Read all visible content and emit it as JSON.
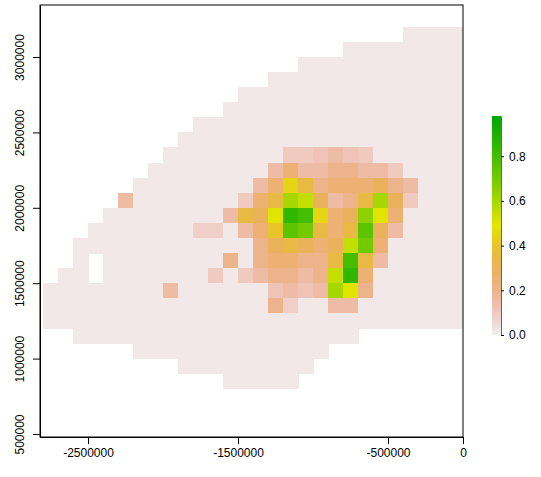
{
  "chart_data": {
    "type": "heatmap",
    "x": [
      -2750000,
      -2650000,
      -2550000,
      -2450000,
      -2350000,
      -2250000,
      -2150000,
      -2050000,
      -1950000,
      -1850000,
      -1750000,
      -1650000,
      -1550000,
      -1450000,
      -1350000,
      -1250000,
      -1150000,
      -1050000,
      -950000,
      -850000,
      -750000,
      -650000,
      -550000,
      -450000,
      -350000,
      -250000,
      -150000,
      -50000
    ],
    "y": [
      3150000,
      3050000,
      2950000,
      2850000,
      2750000,
      2650000,
      2550000,
      2450000,
      2350000,
      2250000,
      2150000,
      2050000,
      1950000,
      1850000,
      1750000,
      1650000,
      1550000,
      1450000,
      1350000,
      1250000,
      1150000,
      1050000,
      950000,
      850000
    ],
    "values": [
      [
        null,
        null,
        null,
        null,
        null,
        null,
        null,
        null,
        null,
        null,
        null,
        null,
        null,
        null,
        null,
        null,
        null,
        null,
        null,
        null,
        null,
        null,
        null,
        null,
        0.02,
        0.02,
        0.02,
        0.02
      ],
      [
        null,
        null,
        null,
        null,
        null,
        null,
        null,
        null,
        null,
        null,
        null,
        null,
        null,
        null,
        null,
        null,
        null,
        null,
        null,
        null,
        0.02,
        0.02,
        0.02,
        0.02,
        0.02,
        0.02,
        0.02,
        0.02
      ],
      [
        null,
        null,
        null,
        null,
        null,
        null,
        null,
        null,
        null,
        null,
        null,
        null,
        null,
        null,
        null,
        null,
        null,
        0.02,
        0.02,
        0.02,
        0.02,
        0.02,
        0.02,
        0.02,
        0.02,
        0.02,
        0.02,
        0.02
      ],
      [
        null,
        null,
        null,
        null,
        null,
        null,
        null,
        null,
        null,
        null,
        null,
        null,
        null,
        null,
        null,
        0.02,
        0.02,
        0.02,
        0.02,
        0.02,
        0.02,
        0.02,
        0.02,
        0.02,
        0.02,
        0.02,
        0.02,
        0.02
      ],
      [
        null,
        null,
        null,
        null,
        null,
        null,
        null,
        null,
        null,
        null,
        null,
        null,
        null,
        0.02,
        0.02,
        0.02,
        0.02,
        0.02,
        0.02,
        0.02,
        0.02,
        0.02,
        0.02,
        0.02,
        0.02,
        0.02,
        0.02,
        0.02
      ],
      [
        null,
        null,
        null,
        null,
        null,
        null,
        null,
        null,
        null,
        null,
        null,
        null,
        0.02,
        0.02,
        0.02,
        0.02,
        0.02,
        0.02,
        0.02,
        0.02,
        0.02,
        0.02,
        0.02,
        0.02,
        0.02,
        0.02,
        0.02,
        0.02
      ],
      [
        null,
        null,
        null,
        null,
        null,
        null,
        null,
        null,
        null,
        null,
        0.02,
        0.02,
        0.02,
        0.02,
        0.02,
        0.02,
        0.02,
        0.02,
        0.02,
        0.02,
        0.02,
        0.02,
        0.02,
        0.02,
        0.02,
        0.02,
        0.02,
        0.02
      ],
      [
        null,
        null,
        null,
        null,
        null,
        null,
        null,
        null,
        null,
        0.02,
        0.02,
        0.02,
        0.02,
        0.02,
        0.02,
        0.02,
        0.02,
        0.02,
        0.02,
        0.02,
        0.02,
        0.02,
        0.02,
        0.02,
        0.02,
        0.02,
        0.02,
        0.02
      ],
      [
        null,
        null,
        null,
        null,
        null,
        null,
        null,
        null,
        0.02,
        0.02,
        0.02,
        0.02,
        0.02,
        0.02,
        0.02,
        0.02,
        0.1,
        0.1,
        0.12,
        0.15,
        0.12,
        0.1,
        0.02,
        0.02,
        0.02,
        0.02,
        0.02,
        0.02
      ],
      [
        null,
        null,
        null,
        null,
        null,
        null,
        null,
        0.02,
        0.02,
        0.02,
        0.02,
        0.02,
        0.02,
        0.02,
        0.02,
        0.15,
        0.25,
        0.15,
        0.15,
        0.2,
        0.2,
        0.15,
        0.15,
        0.1,
        0.02,
        0.02,
        0.02,
        0.02
      ],
      [
        null,
        null,
        null,
        null,
        null,
        null,
        0.02,
        0.02,
        0.02,
        0.02,
        0.02,
        0.02,
        0.02,
        0.02,
        0.15,
        0.25,
        0.45,
        0.35,
        0.2,
        0.25,
        0.25,
        0.25,
        0.3,
        0.2,
        0.15,
        0.02,
        0.02,
        0.02
      ],
      [
        null,
        null,
        null,
        null,
        null,
        0.15,
        0.02,
        0.02,
        0.02,
        0.02,
        0.02,
        0.02,
        0.02,
        0.1,
        0.25,
        0.35,
        0.6,
        0.55,
        0.3,
        0.15,
        0.2,
        0.35,
        0.6,
        0.3,
        0.1,
        0.02,
        0.02,
        0.02
      ],
      [
        null,
        null,
        null,
        null,
        0.02,
        0.02,
        0.02,
        0.02,
        0.02,
        0.02,
        0.02,
        0.02,
        0.15,
        0.35,
        0.3,
        0.5,
        0.85,
        0.8,
        0.45,
        0.25,
        0.3,
        0.65,
        0.5,
        0.25,
        0.02,
        0.02,
        0.02,
        0.02
      ],
      [
        null,
        null,
        null,
        0.02,
        0.02,
        0.02,
        0.02,
        0.02,
        0.02,
        0.02,
        0.08,
        0.08,
        0.02,
        0.15,
        0.25,
        0.4,
        0.75,
        0.7,
        0.35,
        0.25,
        0.35,
        0.75,
        0.3,
        0.15,
        0.02,
        0.02,
        0.02,
        0.02
      ],
      [
        null,
        null,
        0.02,
        0.02,
        0.02,
        0.02,
        0.02,
        0.02,
        0.02,
        0.02,
        0.02,
        0.02,
        0.02,
        0.02,
        0.2,
        0.3,
        0.35,
        0.3,
        0.25,
        0.3,
        0.55,
        0.7,
        0.25,
        0.02,
        0.02,
        0.02,
        0.02,
        0.02
      ],
      [
        null,
        null,
        0.02,
        null,
        0.02,
        0.02,
        0.02,
        0.02,
        0.02,
        0.02,
        0.02,
        0.02,
        0.2,
        0.02,
        0.2,
        0.25,
        0.25,
        0.2,
        0.2,
        0.35,
        0.8,
        0.35,
        0.15,
        0.02,
        0.02,
        0.02,
        0.02,
        0.02
      ],
      [
        null,
        0.02,
        0.02,
        null,
        0.02,
        0.02,
        0.02,
        0.02,
        0.02,
        0.02,
        0.02,
        0.1,
        0.02,
        0.1,
        0.15,
        0.2,
        0.2,
        0.15,
        0.2,
        0.55,
        0.85,
        0.25,
        0.02,
        0.02,
        0.02,
        0.02,
        0.02,
        0.02
      ],
      [
        0.02,
        0.02,
        0.02,
        0.02,
        0.02,
        0.02,
        0.02,
        0.02,
        0.15,
        0.02,
        0.02,
        0.02,
        0.02,
        0.02,
        0.02,
        0.12,
        0.15,
        0.12,
        0.15,
        0.6,
        0.5,
        0.2,
        0.02,
        0.02,
        0.02,
        0.02,
        0.02,
        0.02
      ],
      [
        0.02,
        0.02,
        0.02,
        0.02,
        0.02,
        0.02,
        0.02,
        0.02,
        0.02,
        0.02,
        0.02,
        0.02,
        0.02,
        0.02,
        0.02,
        0.2,
        0.08,
        0.02,
        0.02,
        0.15,
        0.15,
        0.02,
        0.02,
        0.02,
        0.02,
        0.02,
        0.02,
        0.02
      ],
      [
        0.02,
        0.02,
        0.02,
        0.02,
        0.02,
        0.02,
        0.02,
        0.02,
        0.02,
        0.02,
        0.02,
        0.02,
        0.02,
        0.02,
        0.02,
        0.02,
        0.02,
        0.02,
        0.02,
        0.02,
        0.02,
        0.02,
        0.02,
        0.02,
        0.02,
        0.02,
        0.02,
        0.02
      ],
      [
        null,
        null,
        0.02,
        0.02,
        0.02,
        0.02,
        0.02,
        0.02,
        0.02,
        0.02,
        0.02,
        0.02,
        0.02,
        0.02,
        0.02,
        0.02,
        0.02,
        0.02,
        0.02,
        0.02,
        0.02,
        null,
        null,
        null,
        null,
        null,
        null,
        null
      ],
      [
        null,
        null,
        null,
        null,
        null,
        null,
        0.02,
        0.02,
        0.02,
        0.02,
        0.02,
        0.02,
        0.02,
        0.02,
        0.02,
        0.02,
        0.02,
        0.02,
        0.02,
        null,
        null,
        null,
        null,
        null,
        null,
        null,
        null,
        null
      ],
      [
        null,
        null,
        null,
        null,
        null,
        null,
        null,
        null,
        null,
        0.02,
        0.02,
        0.02,
        0.02,
        0.02,
        0.02,
        0.02,
        0.02,
        0.02,
        null,
        null,
        null,
        null,
        null,
        null,
        null,
        null,
        null,
        null
      ],
      [
        null,
        null,
        null,
        null,
        null,
        null,
        null,
        null,
        null,
        null,
        null,
        null,
        0.02,
        0.02,
        0.02,
        0.02,
        0.02,
        null,
        null,
        null,
        null,
        null,
        null,
        null,
        null,
        null,
        null,
        null
      ]
    ],
    "xlim": [
      -2820000,
      0
    ],
    "ylim": [
      480000,
      3345000
    ],
    "xticks": [
      -2500000,
      -1500000,
      -500000,
      0
    ],
    "yticks": [
      500000,
      1000000,
      1500000,
      2000000,
      2500000,
      3000000
    ],
    "zlim": [
      0,
      0.98
    ],
    "zticks": [
      {
        "value": 0,
        "label": "0.0"
      },
      0.2,
      0.4,
      0.6,
      0.8
    ]
  }
}
